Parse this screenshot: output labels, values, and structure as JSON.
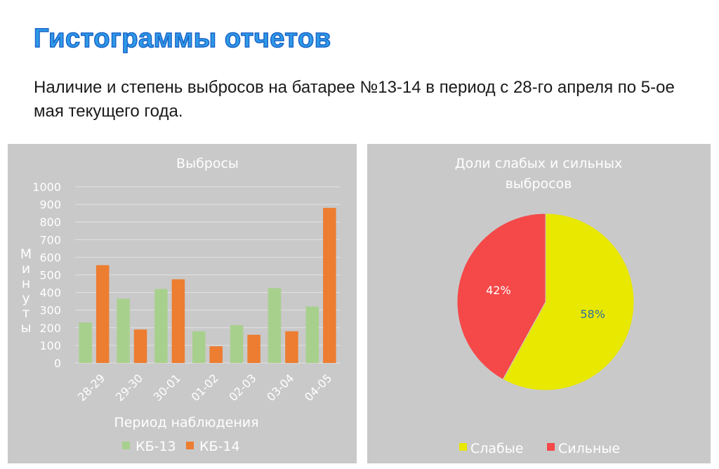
{
  "slide": {
    "title": "Гистограммы отчетов",
    "subtitle": "Наличие и степень выбросов на батарее №13-14 в период с 28-го апреля по 5-ое мая текущего года."
  },
  "chart_data": [
    {
      "type": "bar",
      "title": "Выбросы",
      "xlabel": "Период наблюдения",
      "ylabel": "Минуты",
      "categories": [
        "28-29",
        "29-30",
        "30-01",
        "01-02",
        "02-03",
        "03-04",
        "04-05"
      ],
      "series": [
        {
          "name": "КБ-13",
          "color": "#a8d08d",
          "values": [
            230,
            365,
            420,
            180,
            215,
            425,
            320
          ]
        },
        {
          "name": "КБ-14",
          "color": "#ed7d31",
          "values": [
            555,
            190,
            475,
            95,
            160,
            180,
            880
          ]
        }
      ],
      "ylim": [
        0,
        1000
      ],
      "yticks": [
        0,
        100,
        200,
        300,
        400,
        500,
        600,
        700,
        800,
        900,
        1000
      ],
      "grid": true,
      "legend": "bottom"
    },
    {
      "type": "pie",
      "title": "Доли слабых и сильных выбросов",
      "title_lines": [
        "Доли слабых и сильных",
        "выбросов"
      ],
      "slices": [
        {
          "label": "Слабые",
          "value": 58,
          "display": "58%",
          "color": "#e8e800",
          "label_color": "#2f6e9f"
        },
        {
          "label": "Сильные",
          "value": 42,
          "display": "42%",
          "color": "#f54848",
          "label_color": "#ffffff"
        }
      ],
      "legend": "bottom"
    }
  ]
}
